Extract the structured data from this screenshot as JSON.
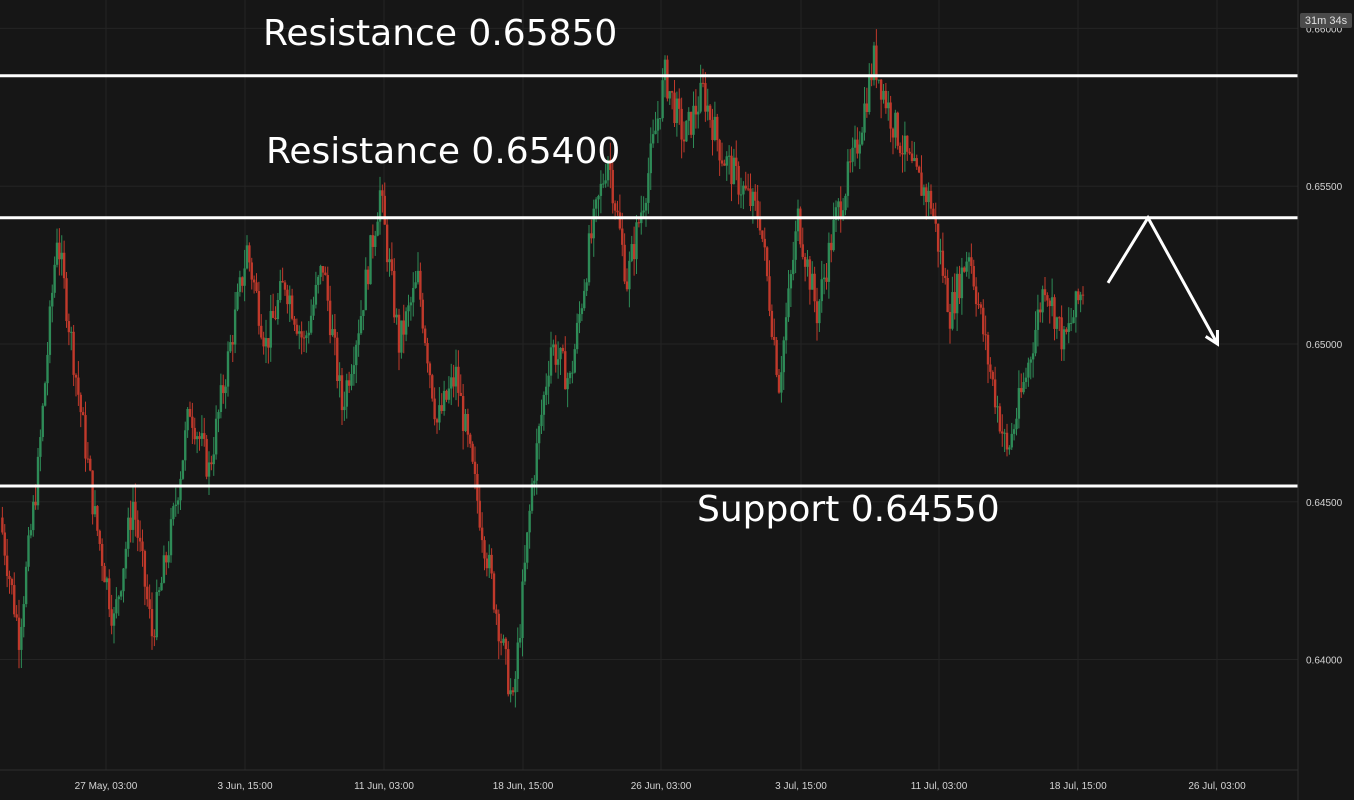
{
  "chart_data": {
    "type": "candlestick",
    "timer": "31m 34s",
    "y_ticks": [
      "0.66000",
      "0.65500",
      "0.65000",
      "0.64500",
      "0.64000"
    ],
    "x_ticks": [
      "27 May, 03:00",
      "3 Jun, 15:00",
      "11 Jun, 03:00",
      "18 Jun, 15:00",
      "26 Jun, 03:00",
      "3 Jul, 15:00",
      "11 Jul, 03:00",
      "18 Jul, 15:00",
      "26 Jul, 03:00"
    ],
    "ylim": [
      0.6365,
      0.6609
    ],
    "grid": true,
    "levels": [
      {
        "name": "Resistance 0.65850",
        "value": 0.6585,
        "tag": "0.65850"
      },
      {
        "name": "Resistance 0.65400",
        "value": 0.654,
        "tag": "0.65400"
      },
      {
        "name": "Support 0.64550",
        "value": 0.6455,
        "tag": "0.64550"
      }
    ],
    "price_path": [
      {
        "i": 0,
        "p": 0.6445
      },
      {
        "i": 1,
        "p": 0.6408
      },
      {
        "i": 2,
        "p": 0.646
      },
      {
        "i": 3,
        "p": 0.6535
      },
      {
        "i": 4,
        "p": 0.649
      },
      {
        "i": 5,
        "p": 0.6445
      },
      {
        "i": 6,
        "p": 0.6412
      },
      {
        "i": 7,
        "p": 0.645
      },
      {
        "i": 8,
        "p": 0.6408
      },
      {
        "i": 9,
        "p": 0.644
      },
      {
        "i": 10,
        "p": 0.648
      },
      {
        "i": 11,
        "p": 0.646
      },
      {
        "i": 12,
        "p": 0.6495
      },
      {
        "i": 13,
        "p": 0.653
      },
      {
        "i": 14,
        "p": 0.65
      },
      {
        "i": 15,
        "p": 0.652
      },
      {
        "i": 16,
        "p": 0.65
      },
      {
        "i": 17,
        "p": 0.6525
      },
      {
        "i": 18,
        "p": 0.648
      },
      {
        "i": 19,
        "p": 0.651
      },
      {
        "i": 20,
        "p": 0.6548
      },
      {
        "i": 21,
        "p": 0.65
      },
      {
        "i": 22,
        "p": 0.652
      },
      {
        "i": 23,
        "p": 0.6475
      },
      {
        "i": 24,
        "p": 0.649
      },
      {
        "i": 25,
        "p": 0.6455
      },
      {
        "i": 26,
        "p": 0.642
      },
      {
        "i": 27,
        "p": 0.6385
      },
      {
        "i": 28,
        "p": 0.6455
      },
      {
        "i": 29,
        "p": 0.65
      },
      {
        "i": 30,
        "p": 0.6488
      },
      {
        "i": 31,
        "p": 0.653
      },
      {
        "i": 32,
        "p": 0.656
      },
      {
        "i": 33,
        "p": 0.652
      },
      {
        "i": 34,
        "p": 0.655
      },
      {
        "i": 35,
        "p": 0.6585
      },
      {
        "i": 36,
        "p": 0.6565
      },
      {
        "i": 37,
        "p": 0.658
      },
      {
        "i": 38,
        "p": 0.656
      },
      {
        "i": 39,
        "p": 0.655
      },
      {
        "i": 40,
        "p": 0.654
      },
      {
        "i": 41,
        "p": 0.6488
      },
      {
        "i": 42,
        "p": 0.654
      },
      {
        "i": 43,
        "p": 0.651
      },
      {
        "i": 44,
        "p": 0.654
      },
      {
        "i": 45,
        "p": 0.656
      },
      {
        "i": 46,
        "p": 0.659
      },
      {
        "i": 47,
        "p": 0.657
      },
      {
        "i": 48,
        "p": 0.6555
      },
      {
        "i": 49,
        "p": 0.6545
      },
      {
        "i": 50,
        "p": 0.651
      },
      {
        "i": 51,
        "p": 0.653
      },
      {
        "i": 52,
        "p": 0.6495
      },
      {
        "i": 53,
        "p": 0.6465
      },
      {
        "i": 54,
        "p": 0.649
      },
      {
        "i": 55,
        "p": 0.652
      },
      {
        "i": 56,
        "p": 0.65
      },
      {
        "i": 57,
        "p": 0.6518
      }
    ],
    "forecast": [
      {
        "i": 57.0,
        "p": 0.652
      },
      {
        "i": 59.0,
        "p": 0.654
      },
      {
        "i": 63.5,
        "p": 0.65
      }
    ]
  }
}
